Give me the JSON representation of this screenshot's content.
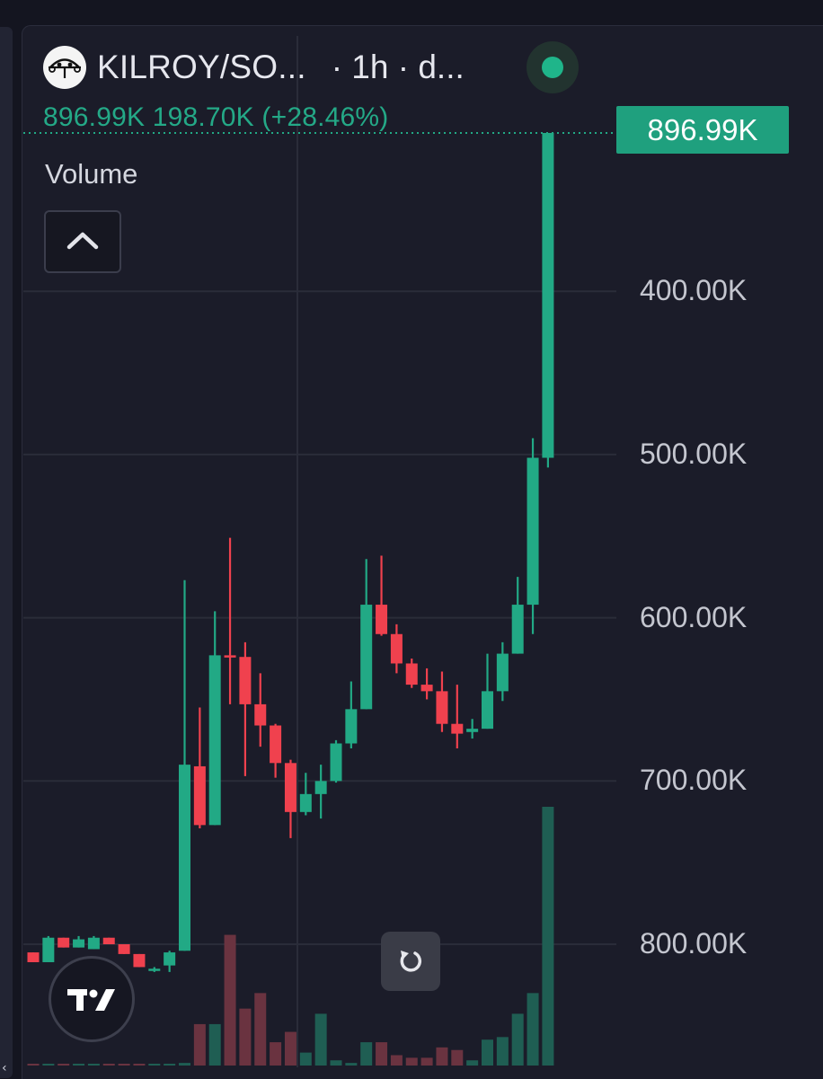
{
  "header": {
    "symbol": "KILROY/SO...",
    "interval": "· 1h · d...",
    "logo_icon": "kilroy-face-icon",
    "status": "live",
    "status_color": "#1fb58a"
  },
  "legend": {
    "ohlc_text": "896.99K  198.70K  (+28.46%)",
    "change_color": "#24a987"
  },
  "volume_pane": {
    "label": "Volume",
    "collapse_icon": "chevron-up-icon"
  },
  "last_price_badge": "896.99K",
  "axis": {
    "y_ticks": [
      "800.00K",
      "700.00K",
      "600.00K",
      "500.00K",
      "400.00K"
    ]
  },
  "controls": {
    "reset_icon": "reset-rotate-icon",
    "tradingview_icon": "tradingview-logo-icon"
  },
  "colors": {
    "up": "#22a985",
    "down": "#f0414e",
    "volume_up": "#1f5e53",
    "volume_down": "#6a3340"
  },
  "chart_data": {
    "type": "candlestick",
    "title": "",
    "ylim": [
      355000,
      975000
    ],
    "y_ticks": [
      400000,
      500000,
      600000,
      700000,
      800000
    ],
    "grid": true,
    "last_price": 896990,
    "candles": [
      {
        "o": 395000,
        "h": 395000,
        "l": 389000,
        "c": 389000
      },
      {
        "o": 389000,
        "h": 405000,
        "l": 389000,
        "c": 404000
      },
      {
        "o": 404000,
        "h": 404000,
        "l": 398000,
        "c": 398000
      },
      {
        "o": 398000,
        "h": 405000,
        "l": 398000,
        "c": 403000
      },
      {
        "o": 397000,
        "h": 405000,
        "l": 397000,
        "c": 404000
      },
      {
        "o": 404000,
        "h": 404000,
        "l": 400000,
        "c": 400000
      },
      {
        "o": 400000,
        "h": 400000,
        "l": 394000,
        "c": 394000
      },
      {
        "o": 394000,
        "h": 394000,
        "l": 386000,
        "c": 386000
      },
      {
        "o": 384000,
        "h": 386000,
        "l": 383000,
        "c": 385000
      },
      {
        "o": 387000,
        "h": 396000,
        "l": 383000,
        "c": 395000
      },
      {
        "o": 396000,
        "h": 623000,
        "l": 396000,
        "c": 510000
      },
      {
        "o": 509000,
        "h": 545000,
        "l": 471000,
        "c": 473000
      },
      {
        "o": 473000,
        "h": 604000,
        "l": 473000,
        "c": 577000
      },
      {
        "o": 577000,
        "h": 649000,
        "l": 547000,
        "c": 576000
      },
      {
        "o": 576000,
        "h": 585000,
        "l": 503000,
        "c": 547000
      },
      {
        "o": 547000,
        "h": 566000,
        "l": 521000,
        "c": 534000
      },
      {
        "o": 534000,
        "h": 535000,
        "l": 502000,
        "c": 511000
      },
      {
        "o": 511000,
        "h": 513000,
        "l": 465000,
        "c": 481000
      },
      {
        "o": 481000,
        "h": 505000,
        "l": 479000,
        "c": 492000
      },
      {
        "o": 492000,
        "h": 510000,
        "l": 477000,
        "c": 500000
      },
      {
        "o": 500000,
        "h": 525000,
        "l": 499000,
        "c": 523000
      },
      {
        "o": 523000,
        "h": 561000,
        "l": 520000,
        "c": 544000
      },
      {
        "o": 544000,
        "h": 636000,
        "l": 544000,
        "c": 608000
      },
      {
        "o": 608000,
        "h": 638000,
        "l": 589000,
        "c": 590000
      },
      {
        "o": 590000,
        "h": 596000,
        "l": 566000,
        "c": 572000
      },
      {
        "o": 572000,
        "h": 575000,
        "l": 557000,
        "c": 559000
      },
      {
        "o": 559000,
        "h": 569000,
        "l": 550000,
        "c": 555000
      },
      {
        "o": 555000,
        "h": 567000,
        "l": 530000,
        "c": 535000
      },
      {
        "o": 535000,
        "h": 559000,
        "l": 520000,
        "c": 529000
      },
      {
        "o": 530000,
        "h": 538000,
        "l": 526000,
        "c": 532000
      },
      {
        "o": 532000,
        "h": 578000,
        "l": 532000,
        "c": 555000
      },
      {
        "o": 555000,
        "h": 585000,
        "l": 549000,
        "c": 578000
      },
      {
        "o": 578000,
        "h": 625000,
        "l": 578000,
        "c": 608000
      },
      {
        "o": 608000,
        "h": 710000,
        "l": 590000,
        "c": 698000
      },
      {
        "o": 698000,
        "h": 897000,
        "l": 692000,
        "c": 896990
      }
    ],
    "volumes": [
      {
        "v": 0.006,
        "dir": "down"
      },
      {
        "v": 0.006,
        "dir": "up"
      },
      {
        "v": 0.006,
        "dir": "down"
      },
      {
        "v": 0.006,
        "dir": "up"
      },
      {
        "v": 0.005,
        "dir": "up"
      },
      {
        "v": 0.005,
        "dir": "down"
      },
      {
        "v": 0.005,
        "dir": "down"
      },
      {
        "v": 0.005,
        "dir": "down"
      },
      {
        "v": 0.005,
        "dir": "up"
      },
      {
        "v": 0.005,
        "dir": "up"
      },
      {
        "v": 0.01,
        "dir": "up"
      },
      {
        "v": 0.16,
        "dir": "down"
      },
      {
        "v": 0.16,
        "dir": "up"
      },
      {
        "v": 0.505,
        "dir": "down"
      },
      {
        "v": 0.22,
        "dir": "down"
      },
      {
        "v": 0.28,
        "dir": "down"
      },
      {
        "v": 0.09,
        "dir": "down"
      },
      {
        "v": 0.13,
        "dir": "down"
      },
      {
        "v": 0.05,
        "dir": "up"
      },
      {
        "v": 0.2,
        "dir": "up"
      },
      {
        "v": 0.02,
        "dir": "up"
      },
      {
        "v": 0.01,
        "dir": "up"
      },
      {
        "v": 0.09,
        "dir": "up"
      },
      {
        "v": 0.09,
        "dir": "down"
      },
      {
        "v": 0.04,
        "dir": "down"
      },
      {
        "v": 0.03,
        "dir": "down"
      },
      {
        "v": 0.03,
        "dir": "down"
      },
      {
        "v": 0.07,
        "dir": "down"
      },
      {
        "v": 0.06,
        "dir": "down"
      },
      {
        "v": 0.02,
        "dir": "up"
      },
      {
        "v": 0.1,
        "dir": "up"
      },
      {
        "v": 0.11,
        "dir": "up"
      },
      {
        "v": 0.2,
        "dir": "up"
      },
      {
        "v": 0.28,
        "dir": "up"
      },
      {
        "v": 1.0,
        "dir": "up"
      }
    ]
  }
}
